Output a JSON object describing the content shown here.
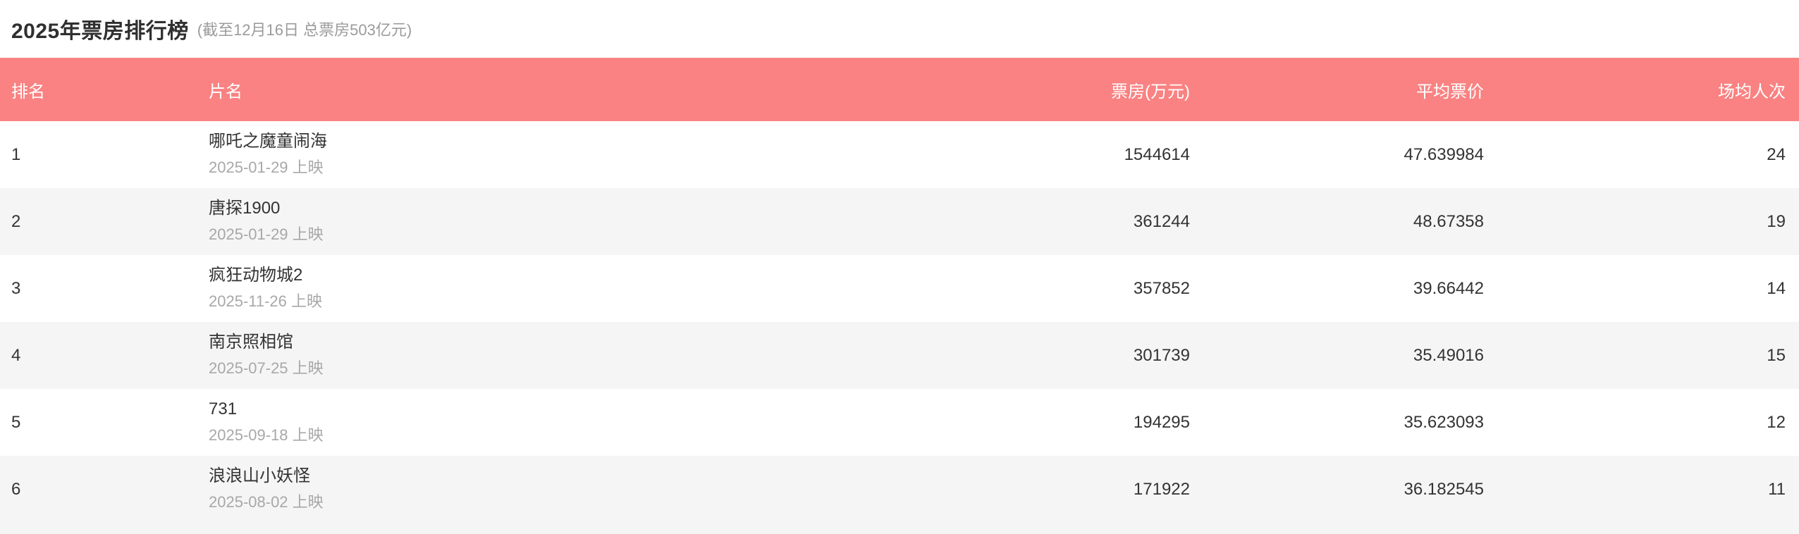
{
  "page": {
    "title": "2025年票房排行榜",
    "subtitle": "(截至12月16日 总票房503亿元)"
  },
  "colors": {
    "header_bg": "#fa8282",
    "stripe_bg": "#f5f5f6",
    "text_primary": "#333333",
    "text_secondary": "#a8a8a8"
  },
  "table": {
    "columns": [
      "排名",
      "片名",
      "票房(万元)",
      "平均票价",
      "场均人次"
    ],
    "rows": [
      {
        "rank": "1",
        "name": "哪吒之魔童闹海",
        "release": "2025-01-29 上映",
        "box_office": "1544614",
        "avg_price": "47.639984",
        "avg_attendance": "24"
      },
      {
        "rank": "2",
        "name": "唐探1900",
        "release": "2025-01-29 上映",
        "box_office": "361244",
        "avg_price": "48.67358",
        "avg_attendance": "19"
      },
      {
        "rank": "3",
        "name": "疯狂动物城2",
        "release": "2025-11-26 上映",
        "box_office": "357852",
        "avg_price": "39.66442",
        "avg_attendance": "14"
      },
      {
        "rank": "4",
        "name": "南京照相馆",
        "release": "2025-07-25 上映",
        "box_office": "301739",
        "avg_price": "35.49016",
        "avg_attendance": "15"
      },
      {
        "rank": "5",
        "name": "731",
        "release": "2025-09-18 上映",
        "box_office": "194295",
        "avg_price": "35.623093",
        "avg_attendance": "12"
      },
      {
        "rank": "6",
        "name": "浪浪山小妖怪",
        "release": "2025-08-02 上映",
        "box_office": "171922",
        "avg_price": "36.182545",
        "avg_attendance": "11"
      }
    ]
  }
}
